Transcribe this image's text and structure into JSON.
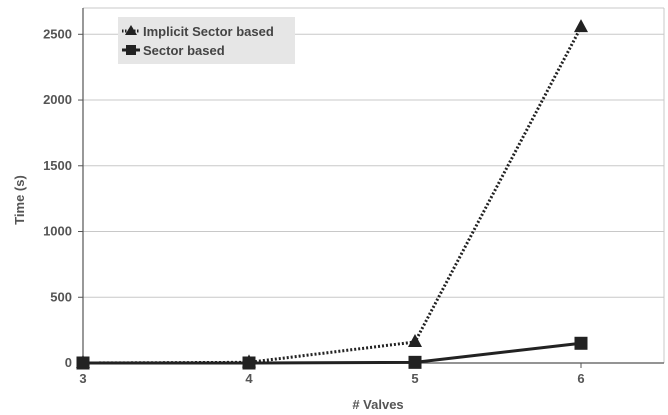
{
  "chart_data": {
    "type": "line",
    "xlabel": "# Valves",
    "ylabel": "Time (s)",
    "x": [
      3,
      4,
      5,
      6
    ],
    "x_ticks": [
      "3",
      "4",
      "5",
      "6"
    ],
    "xlim": [
      3,
      6.5
    ],
    "ylim": [
      0,
      2700
    ],
    "y_ticks": [
      "0",
      "500",
      "1000",
      "1500",
      "2000",
      "2500"
    ],
    "grid": "horizontal",
    "legend_position": "top-left",
    "series": [
      {
        "name": "Implicit Sector based",
        "values": [
          0,
          5,
          160,
          2555
        ],
        "marker": "triangle",
        "line": "dotted",
        "color": "#222222"
      },
      {
        "name": "Sector based",
        "values": [
          0,
          0,
          5,
          150
        ],
        "marker": "square",
        "line": "solid",
        "color": "#222222"
      }
    ]
  }
}
